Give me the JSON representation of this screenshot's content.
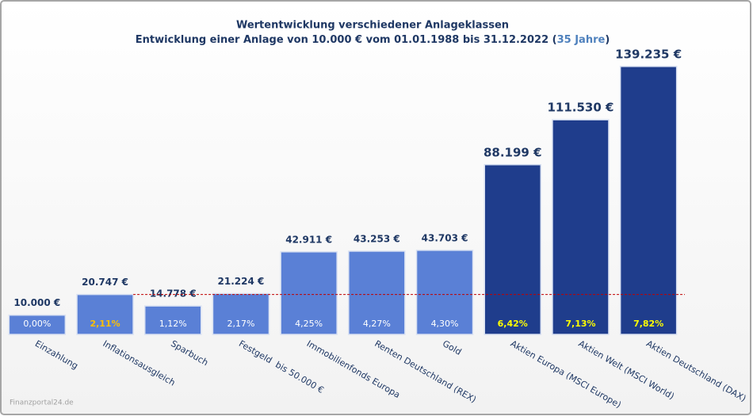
{
  "chart_data": {
    "type": "bar",
    "title": "Wertentwicklung verschiedener Anlageklassen",
    "subtitle": [
      "Entwicklung einer Anlage von 10.000 € vom 01.01.1988 bis 31.12.2022 (",
      "35 Jahre",
      ")"
    ],
    "subtitle_highlight_color": "#4f81bd",
    "categories": [
      "Einzahlung",
      "Inflationsausgleich",
      "Sparbuch",
      "Festgeld  bis 50.000 €",
      "Immobilienfonds Europa",
      "Renten Deutschland (REX)",
      "Gold",
      "Aktien Europa (MSCI Europe)",
      "Aktien Welt (MSCI World)",
      "Aktien Deutschland (DAX)"
    ],
    "values": [
      10000,
      20747,
      14778,
      21224,
      42911,
      43253,
      43703,
      88199,
      111530,
      139235
    ],
    "value_labels": [
      "10.000 €",
      "20.747 €",
      "14.778 €",
      "21.224 €",
      "42.911 €",
      "43.253 €",
      "43.703 €",
      "88.199 €",
      "111.530 €",
      "139.235 €"
    ],
    "annual_return_labels": [
      "0,00%",
      "2,11%",
      "1,12%",
      "2,17%",
      "4,25%",
      "4,27%",
      "4,30%",
      "6,42%",
      "7,13%",
      "7,82%"
    ],
    "annual_return_label_colors": [
      "#ffffff",
      "#ffc000",
      "#ffffff",
      "#ffffff",
      "#ffffff",
      "#ffffff",
      "#ffffff",
      "#ffff00",
      "#ffff00",
      "#ffff00"
    ],
    "colors": [
      "#5a80d6",
      "#5a80d6",
      "#5a80d6",
      "#5a80d6",
      "#5a80d6",
      "#5a80d6",
      "#5a80d6",
      "#1f3d8c",
      "#1f3d8c",
      "#1f3d8c"
    ],
    "ylim": [
      0,
      140000
    ],
    "reference_line": {
      "value": 20747,
      "color": "#c00000"
    },
    "source": "Finanzportal24.de"
  }
}
